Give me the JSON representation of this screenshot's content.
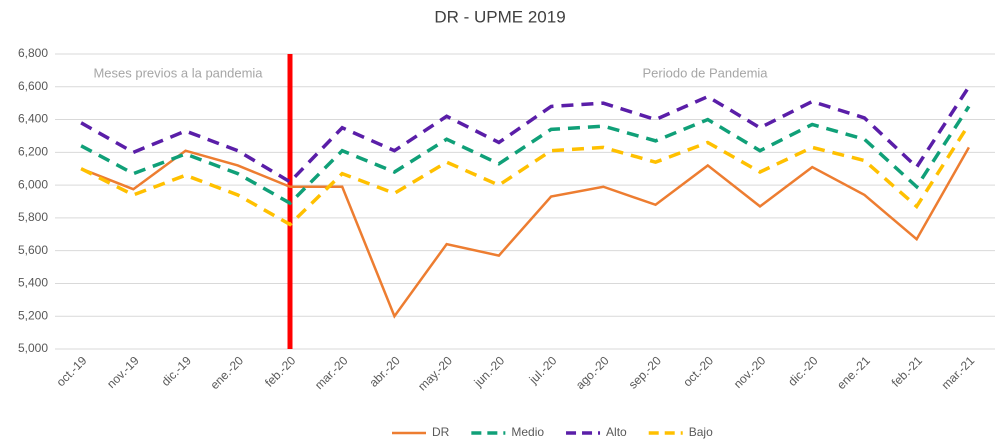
{
  "chart_data": {
    "type": "line",
    "title": "DR - UPME 2019",
    "categories": [
      "oct.-19",
      "nov.-19",
      "dic.-19",
      "ene.-20",
      "feb.-20",
      "mar.-20",
      "abr.-20",
      "may.-20",
      "jun.-20",
      "jul.-20",
      "ago.-20",
      "sep.-20",
      "oct.-20",
      "nov.-20",
      "dic.-20",
      "ene.-21",
      "feb.-21",
      "mar.-21"
    ],
    "series": [
      {
        "name": "DR",
        "color": "#ed7d31",
        "dashed": false,
        "values": [
          6100,
          5975,
          6210,
          6120,
          5990,
          5990,
          5200,
          5640,
          5570,
          5930,
          5990,
          5880,
          6120,
          5870,
          6110,
          5940,
          5670,
          6230
        ]
      },
      {
        "name": "Medio",
        "color": "#10a078",
        "dashed": true,
        "values": [
          6240,
          6070,
          6190,
          6070,
          5890,
          6210,
          6080,
          6280,
          6130,
          6340,
          6360,
          6270,
          6400,
          6210,
          6370,
          6280,
          5990,
          6480
        ]
      },
      {
        "name": "Alto",
        "color": "#5a1ea8",
        "dashed": true,
        "values": [
          6380,
          6200,
          6330,
          6210,
          6020,
          6350,
          6210,
          6420,
          6260,
          6480,
          6500,
          6400,
          6540,
          6350,
          6510,
          6410,
          6110,
          6600
        ]
      },
      {
        "name": "Bajo",
        "color": "#ffc000",
        "dashed": true,
        "values": [
          6100,
          5940,
          6060,
          5940,
          5760,
          6070,
          5950,
          6140,
          6000,
          6210,
          6230,
          6140,
          6260,
          6080,
          6230,
          6150,
          5870,
          6370
        ]
      }
    ],
    "ylim": [
      5000,
      6800
    ],
    "yticks": [
      {
        "value": 5000,
        "label": "5,000"
      },
      {
        "value": 5200,
        "label": "5,200"
      },
      {
        "value": 5400,
        "label": "5,400"
      },
      {
        "value": 5600,
        "label": "5,600"
      },
      {
        "value": 5800,
        "label": "5,800"
      },
      {
        "value": 6000,
        "label": "6,000"
      },
      {
        "value": 6200,
        "label": "6,200"
      },
      {
        "value": 6400,
        "label": "6,400"
      },
      {
        "value": 6600,
        "label": "6,600"
      },
      {
        "value": 6800,
        "label": "6,800"
      }
    ],
    "grid": true,
    "vline": {
      "x": "feb.-20",
      "color": "#ff0000"
    },
    "annotations": [
      "Meses previos a la pandemia",
      "Periodo de Pandemia"
    ],
    "legend": "bottom"
  }
}
